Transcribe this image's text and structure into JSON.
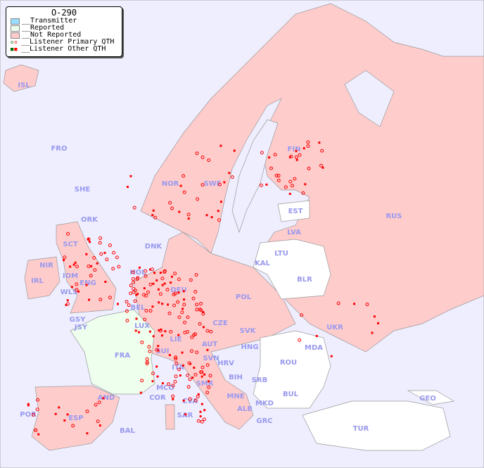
{
  "legend": {
    "title": "O-290",
    "items": [
      {
        "label": "__Transmitter",
        "color": "#99ddff"
      },
      {
        "label": "__Reported",
        "color": "#eeffee"
      },
      {
        "label": "__Not Reported",
        "color": "#ffcccc"
      },
      {
        "label": "__Listener Primary QTH",
        "colors": [
          "#006600",
          "#ff0000"
        ],
        "marker": "circle"
      },
      {
        "label": "__Listener Other QTH",
        "colors": [
          "#006600",
          "#ff0000"
        ],
        "marker": "square"
      }
    ]
  },
  "colors": {
    "sea": "#eeeeff",
    "not_reported": "#ffcccc",
    "reported": "#eeffee",
    "no_data": "#ffffff",
    "label": "#9999ee",
    "dot": "#ff0000"
  },
  "countries": [
    {
      "code": "ISL"
    },
    {
      "code": "FRO"
    },
    {
      "code": "SHE"
    },
    {
      "code": "ORK"
    },
    {
      "code": "NOR"
    },
    {
      "code": "SWE"
    },
    {
      "code": "FIN"
    },
    {
      "code": "RUS"
    },
    {
      "code": "EST"
    },
    {
      "code": "LVA"
    },
    {
      "code": "LTU"
    },
    {
      "code": "KAL"
    },
    {
      "code": "BLR"
    },
    {
      "code": "DNK"
    },
    {
      "code": "HOL"
    },
    {
      "code": "SCT"
    },
    {
      "code": "NIR"
    },
    {
      "code": "IRL"
    },
    {
      "code": "IOM"
    },
    {
      "code": "WLS"
    },
    {
      "code": "ENG"
    },
    {
      "code": "BEL"
    },
    {
      "code": "DEU"
    },
    {
      "code": "POL"
    },
    {
      "code": "UKR"
    },
    {
      "code": "GSY"
    },
    {
      "code": "JSY"
    },
    {
      "code": "LUX"
    },
    {
      "code": "CZE"
    },
    {
      "code": "SVK"
    },
    {
      "code": "HNG"
    },
    {
      "code": "MDA"
    },
    {
      "code": "LIE"
    },
    {
      "code": "AUT"
    },
    {
      "code": "SUI"
    },
    {
      "code": "FRA"
    },
    {
      "code": "SVN"
    },
    {
      "code": "HRV"
    },
    {
      "code": "ROU"
    },
    {
      "code": "ITA"
    },
    {
      "code": "BIH"
    },
    {
      "code": "SRB"
    },
    {
      "code": "SMR"
    },
    {
      "code": "MCO"
    },
    {
      "code": "COR"
    },
    {
      "code": "CVA"
    },
    {
      "code": "MNE"
    },
    {
      "code": "BUL"
    },
    {
      "code": "GEO"
    },
    {
      "code": "AND"
    },
    {
      "code": "ALB"
    },
    {
      "code": "MKD"
    },
    {
      "code": "POR"
    },
    {
      "code": "ESP"
    },
    {
      "code": "SAR"
    },
    {
      "code": "GRC"
    },
    {
      "code": "TUR"
    },
    {
      "code": "BAL"
    }
  ]
}
